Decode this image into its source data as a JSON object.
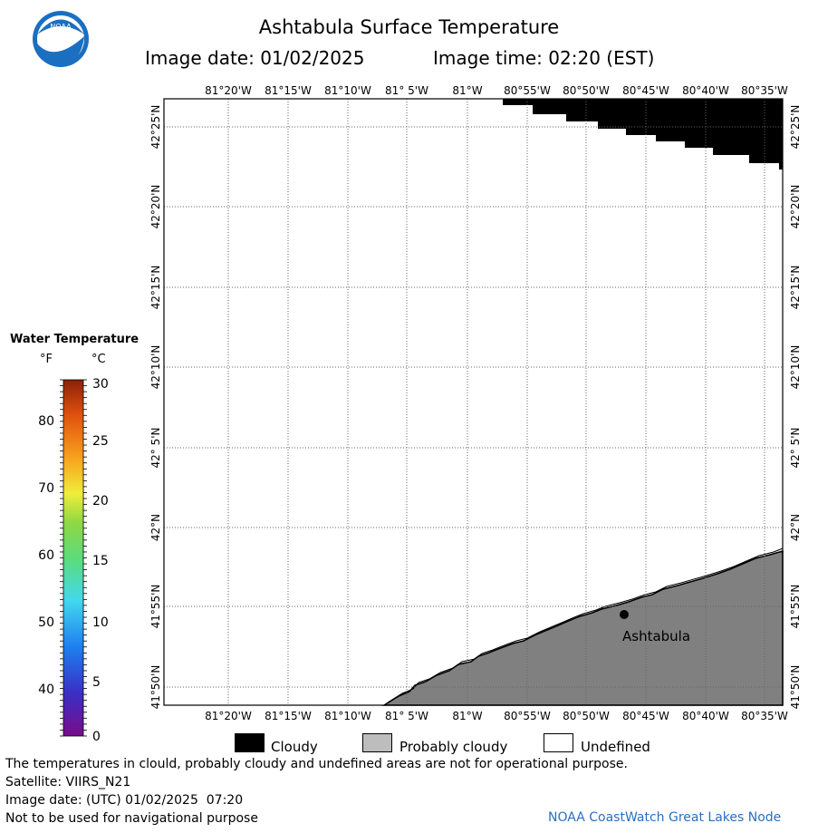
{
  "header": {
    "title": "Ashtabula Surface Temperature",
    "image_date_label": "Image date: 01/02/2025",
    "image_time_label": "Image time: 02:20 (EST)"
  },
  "logo": {
    "text": "NOAA"
  },
  "map": {
    "lon_labels": [
      "81°20'W",
      "81°15'W",
      "81°10'W",
      "81° 5'W",
      "81°W",
      "80°55'W",
      "80°50'W",
      "80°45'W",
      "80°40'W",
      "80°35'W"
    ],
    "lat_labels": [
      "42°25'N",
      "42°20'N",
      "42°15'N",
      "42°10'N",
      "42° 5'N",
      "42°N",
      "41°55'N",
      "41°50'N"
    ],
    "place_label": "Ashtabula"
  },
  "legend": {
    "title": "Water Temperature",
    "unit_f": "°F",
    "unit_c": "°C",
    "f_ticks": [
      "80",
      "70",
      "60",
      "50",
      "40"
    ],
    "c_ticks": [
      "30",
      "25",
      "20",
      "15",
      "10",
      "5",
      "0"
    ],
    "category_cloudy": "Cloudy",
    "category_probably_cloudy": "Probably cloudy",
    "category_undefined": "Undefined",
    "colors": {
      "cloudy": "#000000",
      "probably_cloudy": "#bdbdbd",
      "undefined": "#ffffff",
      "land": "#808080"
    }
  },
  "footer": {
    "warning": "The temperatures in clould, probably cloudy and undefined areas are not for operational purpose.",
    "satellite": "Satellite: VIIRS_N21",
    "utc_date": "Image date: (UTC) 01/02/2025  07:20",
    "nav_note": "Not to be used for navigational purpose",
    "credit": "NOAA CoastWatch Great Lakes Node"
  }
}
